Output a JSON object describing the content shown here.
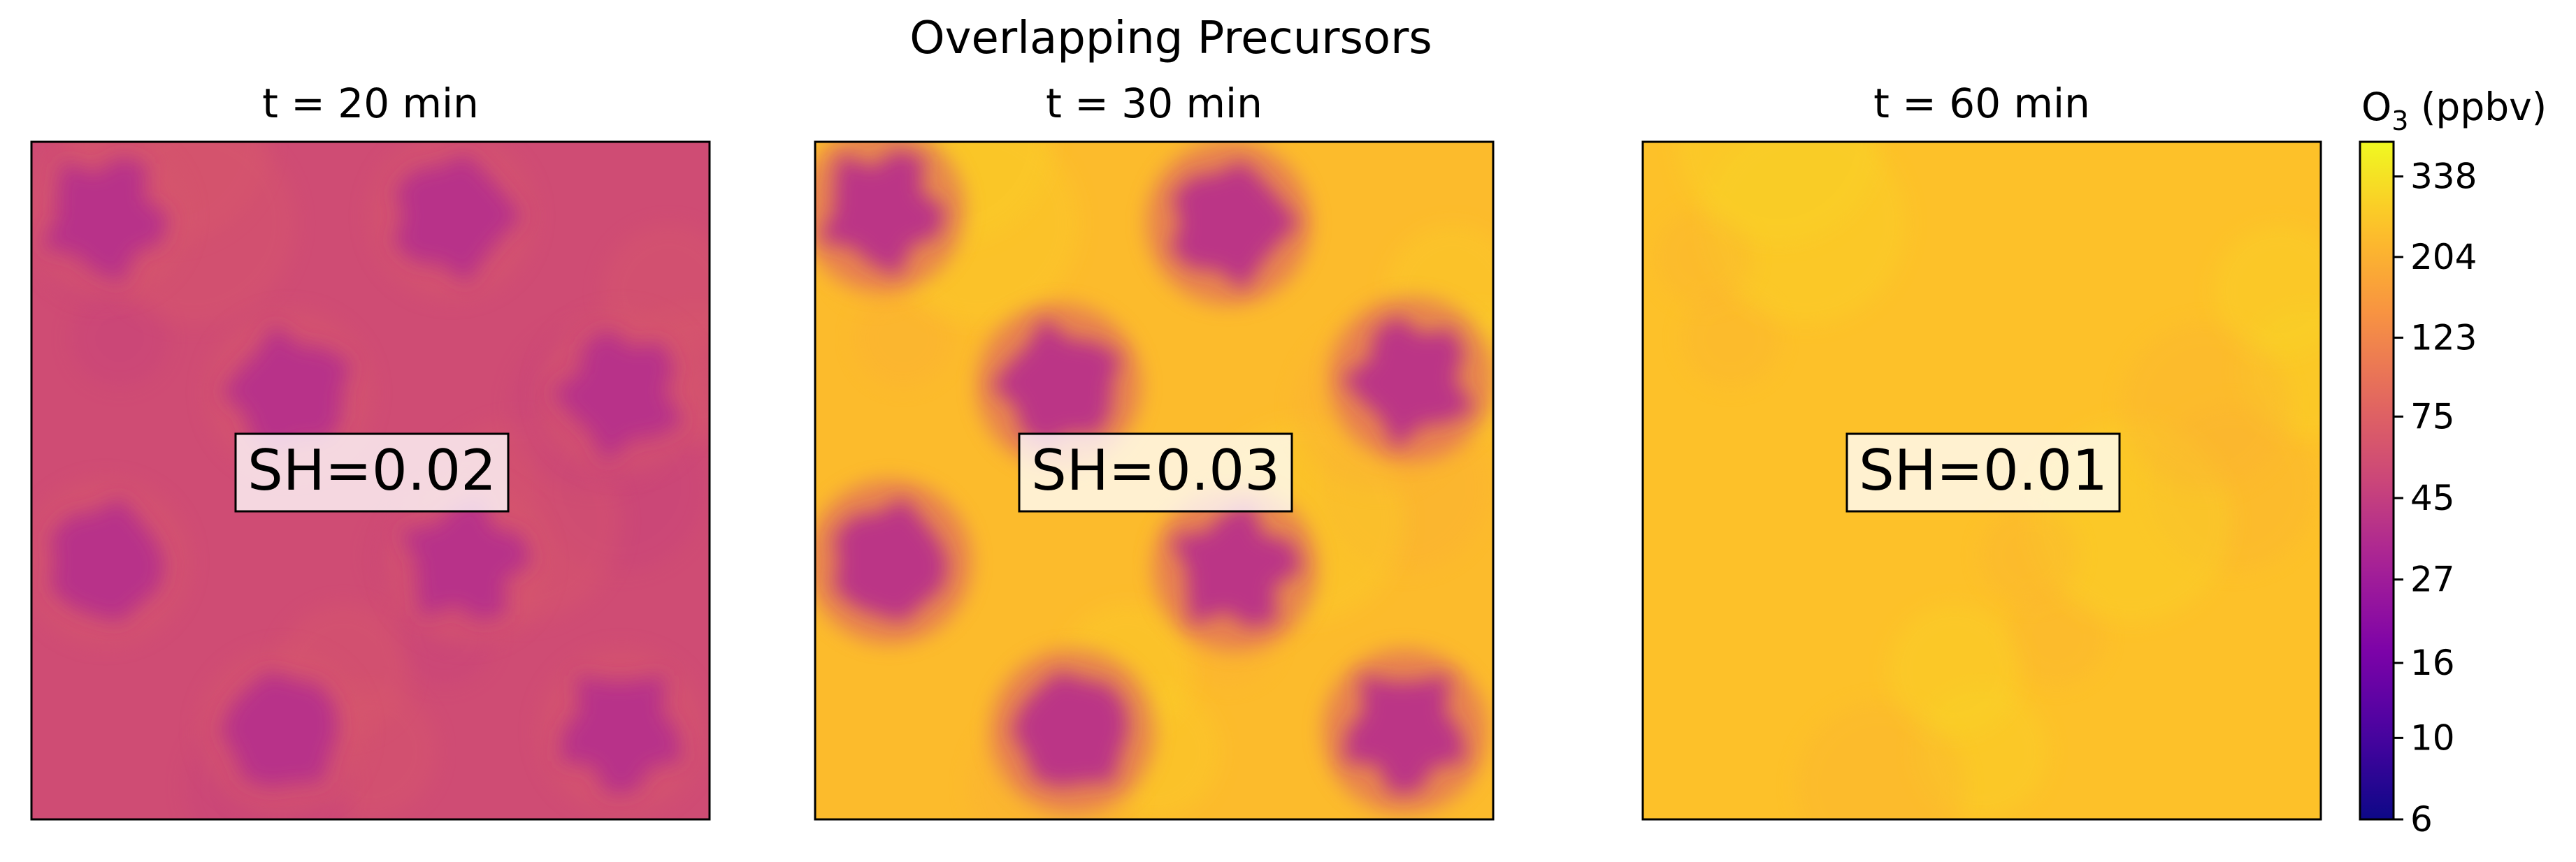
{
  "chart_data": {
    "type": "heatmap",
    "title": "Overlapping Precursors",
    "panels": [
      {
        "title": "t = 20 min",
        "annotation": "SH=0.02",
        "background_ppbv": 55,
        "blob_ppbv": 38,
        "blobs": [
          [
            0.11,
            0.11
          ],
          [
            0.62,
            0.11
          ],
          [
            0.38,
            0.37
          ],
          [
            0.87,
            0.37
          ],
          [
            0.11,
            0.62
          ],
          [
            0.64,
            0.62
          ],
          [
            0.37,
            0.87
          ],
          [
            0.87,
            0.87
          ]
        ]
      },
      {
        "title": "t = 30 min",
        "annotation": "SH=0.03",
        "background_ppbv": 230,
        "blob_ppbv": 40,
        "blobs": [
          [
            0.1,
            0.1
          ],
          [
            0.61,
            0.12
          ],
          [
            0.36,
            0.36
          ],
          [
            0.88,
            0.35
          ],
          [
            0.11,
            0.62
          ],
          [
            0.62,
            0.63
          ],
          [
            0.38,
            0.87
          ],
          [
            0.87,
            0.87
          ]
        ]
      },
      {
        "title": "t = 60 min",
        "annotation": "SH=0.01",
        "background_ppbv": 245,
        "blob_ppbv": null,
        "blobs": []
      }
    ],
    "colorbar": {
      "label_main": "O",
      "label_sub": "3",
      "label_unit": " (ppbv)",
      "scale": "log",
      "range": [
        6,
        420
      ],
      "colormap": "plasma",
      "ticks": [
        6,
        10,
        16,
        27,
        45,
        75,
        123,
        204,
        338
      ]
    }
  }
}
